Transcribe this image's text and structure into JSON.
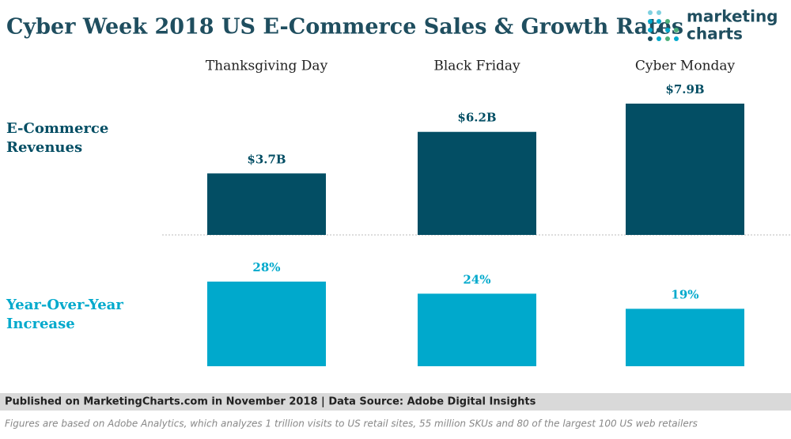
{
  "chart_data": [
    {
      "type": "bar",
      "title": "Cyber Week 2018 US E-Commerce Sales & Growth Rates",
      "row_label": [
        "E-Commerce",
        "Revenues"
      ],
      "categories": [
        "Thanksgiving Day",
        "Black Friday",
        "Cyber Monday"
      ],
      "values": [
        3.7,
        6.2,
        7.9
      ],
      "value_labels": [
        "$3.7B",
        "$6.2B",
        "$7.9B"
      ],
      "color": "#034e64"
    },
    {
      "type": "bar",
      "row_label": [
        "Year-Over-Year",
        "Increase"
      ],
      "values": [
        28,
        24,
        19
      ],
      "value_labels": [
        "28%",
        "24%",
        "19%"
      ],
      "color": "#00a9cc"
    }
  ],
  "logo": [
    "marketing",
    "charts"
  ],
  "footer": {
    "published": "Published on MarketingCharts.com in November 2018 | Data Source: Adobe Digital Insights",
    "note": "Figures are based on Adobe Analytics, which analyzes 1 trillion visits to US retail sites, 55 million SKUs and 80 of the largest 100 US web retailers"
  }
}
